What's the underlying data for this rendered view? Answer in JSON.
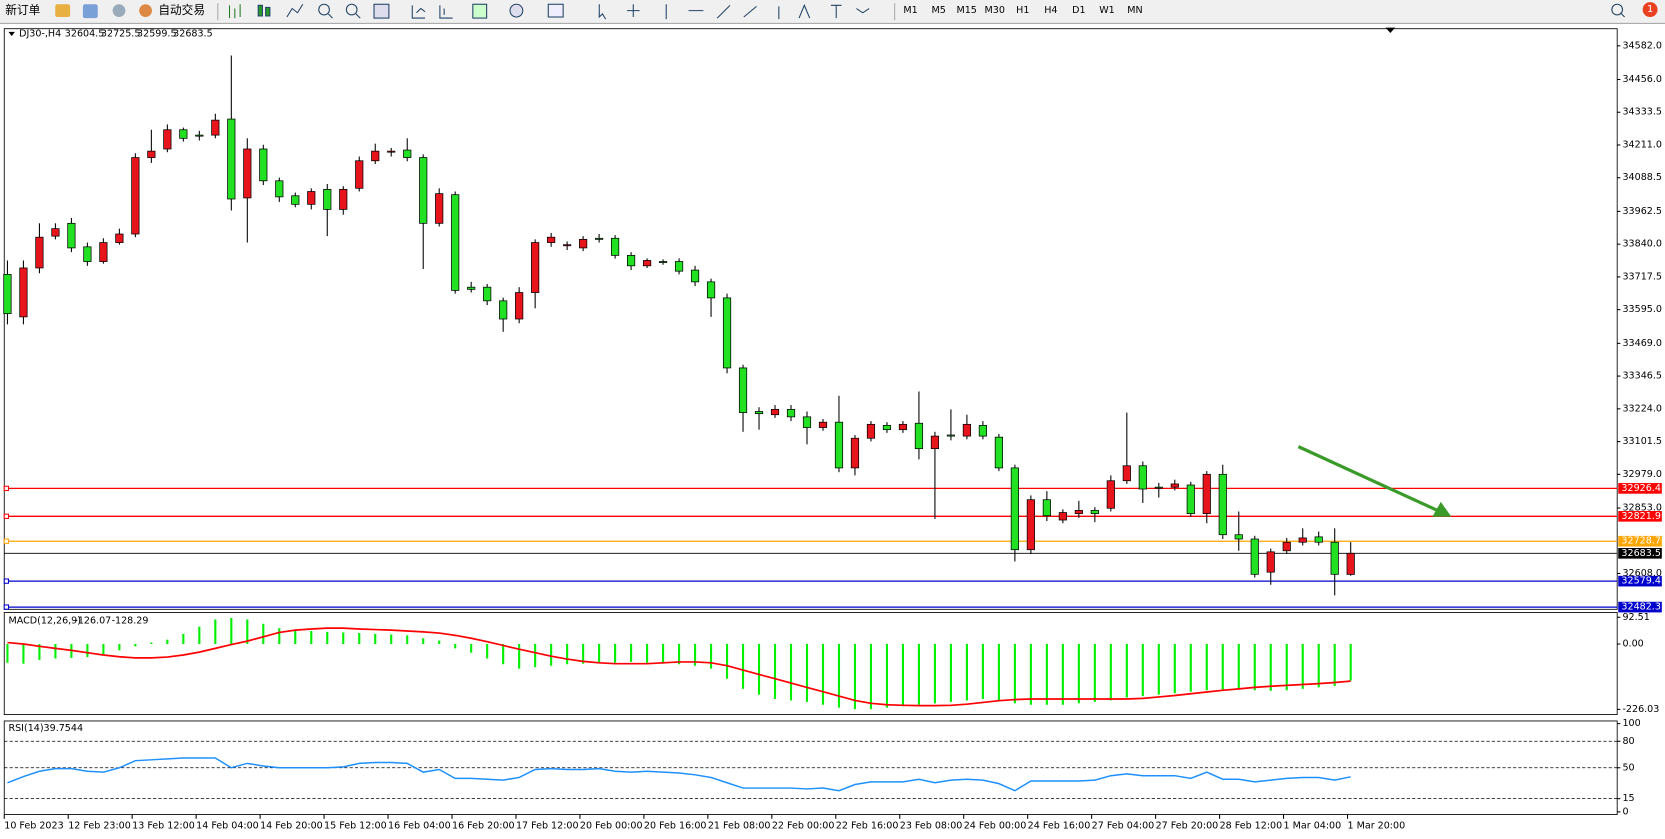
{
  "toolbar": {
    "new_order": "新订单",
    "auto_trading": "自动交易",
    "timeframes": [
      "M1",
      "M5",
      "M15",
      "M30",
      "H1",
      "H4",
      "D1",
      "W1",
      "MN"
    ],
    "notification_count": "1"
  },
  "chart_data": [
    {
      "type": "candlestick",
      "title": "DJ30-,H4",
      "categories": [
        "10 Feb 2023",
        null,
        null,
        null,
        "12 Feb 23:00",
        null,
        null,
        null,
        "13 Feb 12:00",
        null,
        null,
        null,
        "14 Feb 04:00",
        null,
        null,
        null,
        "14 Feb 20:00",
        null,
        null,
        null,
        "15 Feb 12:00",
        null,
        null,
        null,
        "16 Feb 04:00",
        null,
        null,
        null,
        "16 Feb 20:00",
        null,
        null,
        null,
        "17 Feb 12:00",
        null,
        null,
        null,
        "20 Feb 00:00",
        null,
        null,
        null,
        "20 Feb 16:00",
        null,
        null,
        null,
        "21 Feb 08:00",
        null,
        null,
        null,
        "22 Feb 00:00",
        null,
        null,
        null,
        "22 Feb 16:00",
        null,
        null,
        null,
        "23 Feb 08:00",
        null,
        null,
        null,
        "24 Feb 00:00",
        null,
        null,
        null,
        "24 Feb 16:00",
        null,
        null,
        null,
        "27 Feb 04:00",
        null,
        null,
        null,
        "27 Feb 20:00",
        null,
        null,
        null,
        "28 Feb 12:00",
        null,
        null,
        null,
        "1 Mar 04:00",
        null,
        null,
        null,
        "1 Mar 20:00"
      ],
      "open": [
        33727,
        33568,
        33751,
        33870,
        33918,
        33830,
        33775,
        33846,
        33878,
        34164,
        34196,
        34268,
        34248,
        34248,
        34308,
        34013,
        34196,
        34077,
        34021,
        33989,
        34045,
        33970,
        34049,
        34152,
        34184,
        34192,
        34164,
        33918,
        34025,
        33679,
        33679,
        33628,
        33560,
        33659,
        33846,
        33834,
        33826,
        33862,
        33862,
        33798,
        33759,
        33775,
        33775,
        33743,
        33699,
        33639,
        33377,
        33214,
        33202,
        33222,
        33194,
        33154,
        33174,
        33003,
        33114,
        33162,
        33146,
        33170,
        33075,
        33126,
        33122,
        33162,
        33118,
        33003,
        32697,
        32884,
        32808,
        32832,
        32844,
        32852,
        32955,
        33011,
        32931,
        32931,
        32939,
        32832,
        32979,
        32753,
        32737,
        32613,
        32693,
        32725,
        32745,
        32725,
        32604.5
      ],
      "high": [
        33779,
        33779,
        33918,
        33918,
        33938,
        33846,
        33862,
        33898,
        34180,
        34268,
        34288,
        34276,
        34264,
        34328,
        34546,
        34236,
        34212,
        34089,
        34033,
        34049,
        34065,
        34057,
        34168,
        34216,
        34200,
        34236,
        34176,
        34049,
        34037,
        33699,
        33691,
        33640,
        33679,
        33858,
        33882,
        33850,
        33870,
        33878,
        33874,
        33810,
        33787,
        33783,
        33787,
        33759,
        33711,
        33655,
        33389,
        33230,
        33238,
        33238,
        33214,
        33186,
        33273,
        33126,
        33178,
        33174,
        33178,
        33289,
        33138,
        33222,
        33202,
        33178,
        33130,
        33015,
        32900,
        32916,
        32848,
        32880,
        32856,
        32975,
        33210,
        33027,
        32947,
        32959,
        32951,
        32991,
        33015,
        32840,
        32749,
        32701,
        32741,
        32777,
        32765,
        32777,
        32725.5
      ],
      "low": [
        33540,
        33540,
        33731,
        33858,
        33810,
        33759,
        33767,
        33838,
        33866,
        34144,
        34184,
        34224,
        34228,
        34236,
        33966,
        33846,
        34061,
        33998,
        33978,
        33970,
        33870,
        33950,
        34037,
        34140,
        34168,
        34150,
        33747,
        33906,
        33655,
        33659,
        33612,
        33512,
        33544,
        33600,
        33830,
        33818,
        33814,
        33846,
        33786,
        33743,
        33751,
        33763,
        33727,
        33683,
        33568,
        33357,
        33138,
        33146,
        33190,
        33178,
        33091,
        33142,
        32987,
        32975,
        33102,
        33134,
        33134,
        33035,
        32812,
        33106,
        33110,
        33110,
        32991,
        32653,
        32681,
        32804,
        32796,
        32816,
        32800,
        32840,
        32943,
        32872,
        32892,
        32919,
        32820,
        32796,
        32737,
        32693,
        32593,
        32566,
        32681,
        32713,
        32713,
        32526,
        32599.5
      ],
      "close": [
        33580,
        33751,
        33866,
        33898,
        33826,
        33775,
        33846,
        33878,
        34164,
        34188,
        34268,
        34236,
        34244,
        34304,
        34009,
        34196,
        34077,
        34017,
        33989,
        34037,
        33970,
        34045,
        34152,
        34188,
        34188,
        34164,
        33918,
        34029,
        33667,
        33671,
        33628,
        33560,
        33659,
        33846,
        33866,
        33838,
        33858,
        33858,
        33798,
        33759,
        33779,
        33771,
        33739,
        33699,
        33639,
        33377,
        33210,
        33206,
        33222,
        33194,
        33154,
        33174,
        33003,
        33114,
        33166,
        33146,
        33166,
        33075,
        33122,
        33122,
        33166,
        33122,
        33003,
        32697,
        32884,
        32824,
        32836,
        32844,
        32832,
        32955,
        33011,
        32924,
        32927,
        32943,
        32832,
        32979,
        32753,
        32737,
        32605,
        32689,
        32725,
        32741,
        32725,
        32605,
        32683.5
      ],
      "up_color": "#e8141c",
      "down_color": "#22e022",
      "price_line_color": "#000000",
      "levels": [
        {
          "value": 32926.4,
          "color": "#ff0000"
        },
        {
          "value": 32821.9,
          "color": "#ff0000"
        },
        {
          "value": 32728.7,
          "color": "#ffa500"
        },
        {
          "value": 32579.4,
          "color": "#0000cd"
        },
        {
          "value": 32482.3,
          "color": "#0000cd"
        }
      ],
      "ylim": [
        32474,
        34646
      ],
      "yticks": [
        {
          "value": 34582,
          "label": "34582.0"
        },
        {
          "value": 34456,
          "label": "34456.0"
        },
        34333.5,
        {
          "value": 34211,
          "label": "34211.0"
        },
        {
          "value": 34088.5,
          "label": "34088.5"
        },
        33962.5,
        {
          "value": 33840,
          "label": "33840.0"
        },
        33717.5,
        {
          "value": 33595,
          "label": "33595.0"
        },
        {
          "value": 33469,
          "label": "33469.0"
        },
        33346.5,
        {
          "value": 33224,
          "label": "33224.0"
        },
        33101.5,
        {
          "value": 32979,
          "label": "32979.0"
        },
        {
          "value": 32853,
          "label": "32853.0"
        },
        {
          "value": 32608,
          "label": "32608.0"
        }
      ]
    },
    {
      "type": "macd",
      "title": "MACD(12,26,9)",
      "histogram": [
        -65,
        -68,
        -55,
        -50,
        -48,
        -45,
        -35,
        -22,
        -8,
        5,
        15,
        35,
        60,
        85,
        90,
        85,
        70,
        55,
        50,
        45,
        42,
        40,
        38,
        35,
        33,
        30,
        20,
        12,
        -15,
        -30,
        -50,
        -70,
        -85,
        -80,
        -75,
        -70,
        -68,
        -65,
        -65,
        -62,
        -65,
        -68,
        -70,
        -75,
        -85,
        -120,
        -155,
        -175,
        -190,
        -195,
        -200,
        -210,
        -220,
        -225,
        -225,
        -220,
        -215,
        -210,
        -205,
        -200,
        -195,
        -190,
        -195,
        -205,
        -210,
        -210,
        -210,
        -205,
        -200,
        -195,
        -185,
        -180,
        -175,
        -170,
        -165,
        -160,
        -160,
        -155,
        -160,
        -162,
        -160,
        -155,
        -150,
        -145,
        -126.07
      ],
      "signal": [
        5,
        0,
        -8,
        -15,
        -22,
        -30,
        -38,
        -44,
        -48,
        -48,
        -45,
        -38,
        -28,
        -15,
        -2,
        10,
        25,
        40,
        48,
        52,
        55,
        55,
        52,
        50,
        48,
        45,
        42,
        38,
        30,
        20,
        8,
        -5,
        -18,
        -30,
        -42,
        -52,
        -60,
        -65,
        -68,
        -68,
        -68,
        -65,
        -62,
        -62,
        -65,
        -75,
        -90,
        -105,
        -120,
        -135,
        -150,
        -165,
        -180,
        -195,
        -205,
        -210,
        -212,
        -213,
        -213,
        -212,
        -208,
        -202,
        -196,
        -192,
        -190,
        -190,
        -190,
        -190,
        -190,
        -190,
        -190,
        -188,
        -183,
        -178,
        -172,
        -166,
        -160,
        -155,
        -150,
        -146,
        -143,
        -140,
        -137,
        -133,
        -128.29
      ],
      "histogram_color": "#00f000",
      "signal_color": "#ff0000",
      "ylim": [
        -244,
        109
      ],
      "yticks": [
        92.51,
        {
          "value": 0,
          "label": "0.00"
        },
        -226.03
      ]
    },
    {
      "type": "rsi",
      "title": "RSI(14)",
      "values": [
        33,
        40,
        46,
        49,
        49,
        46,
        45,
        50,
        58,
        59,
        60,
        61,
        61,
        61,
        50,
        55,
        52,
        50,
        50,
        50,
        50,
        51,
        55,
        56,
        56,
        55,
        45,
        48,
        38,
        38,
        37,
        36,
        39,
        48,
        49,
        48,
        48,
        49,
        46,
        45,
        46,
        45,
        44,
        42,
        39,
        33,
        27,
        27,
        27,
        27,
        26,
        27,
        24,
        31,
        34,
        34,
        34,
        37,
        33,
        36,
        37,
        36,
        32,
        24,
        35,
        35,
        35,
        35,
        36,
        41,
        43,
        41,
        41,
        41,
        38,
        45,
        37,
        37,
        34,
        36,
        38,
        39,
        39,
        36,
        39.7544
      ],
      "color": "#1e90ff",
      "levels": [
        80,
        50,
        15
      ],
      "ylim": [
        -3,
        103
      ],
      "yticks": [
        100,
        80,
        50,
        15,
        0
      ]
    }
  ]
}
